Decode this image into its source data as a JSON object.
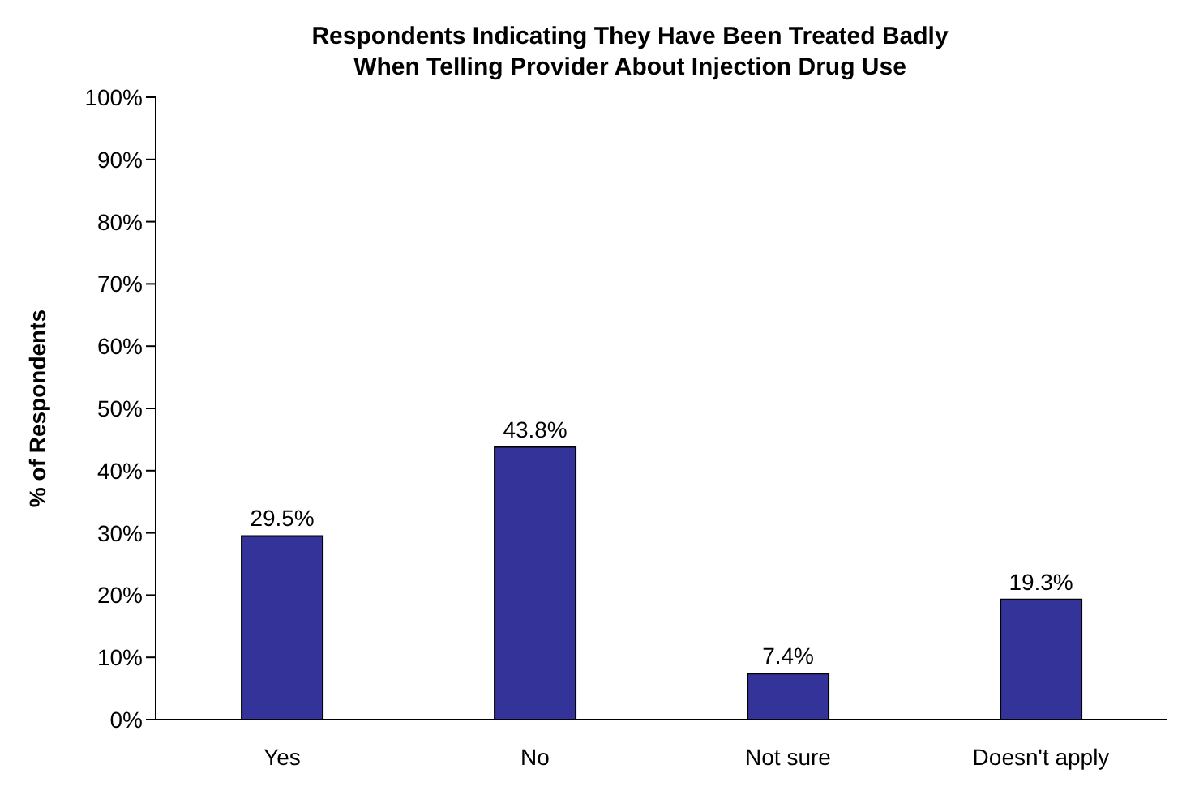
{
  "chart_data": {
    "type": "bar",
    "title": "Respondents Indicating They Have Been Treated Badly\nWhen Telling Provider About Injection Drug Use",
    "ylabel": "% of Respondents",
    "categories": [
      "Yes",
      "No",
      "Not sure",
      "Doesn't apply"
    ],
    "values": [
      29.5,
      43.8,
      7.4,
      19.3
    ],
    "color": "#333399",
    "value_labels": [
      "29.5%",
      "43.8%",
      "7.4%",
      "19.3%"
    ],
    "ylim": [
      0,
      100
    ],
    "yticks": [
      {
        "value": 0,
        "label": "0%"
      },
      {
        "value": 10,
        "label": "10%"
      },
      {
        "value": 20,
        "label": "20%"
      },
      {
        "value": 30,
        "label": "30%"
      },
      {
        "value": 40,
        "label": "40%"
      },
      {
        "value": 50,
        "label": "50%"
      },
      {
        "value": 60,
        "label": "60%"
      },
      {
        "value": 70,
        "label": "70%"
      },
      {
        "value": 80,
        "label": "80%"
      },
      {
        "value": 90,
        "label": "90%"
      },
      {
        "value": 100,
        "label": "100%"
      }
    ],
    "grid": false
  }
}
